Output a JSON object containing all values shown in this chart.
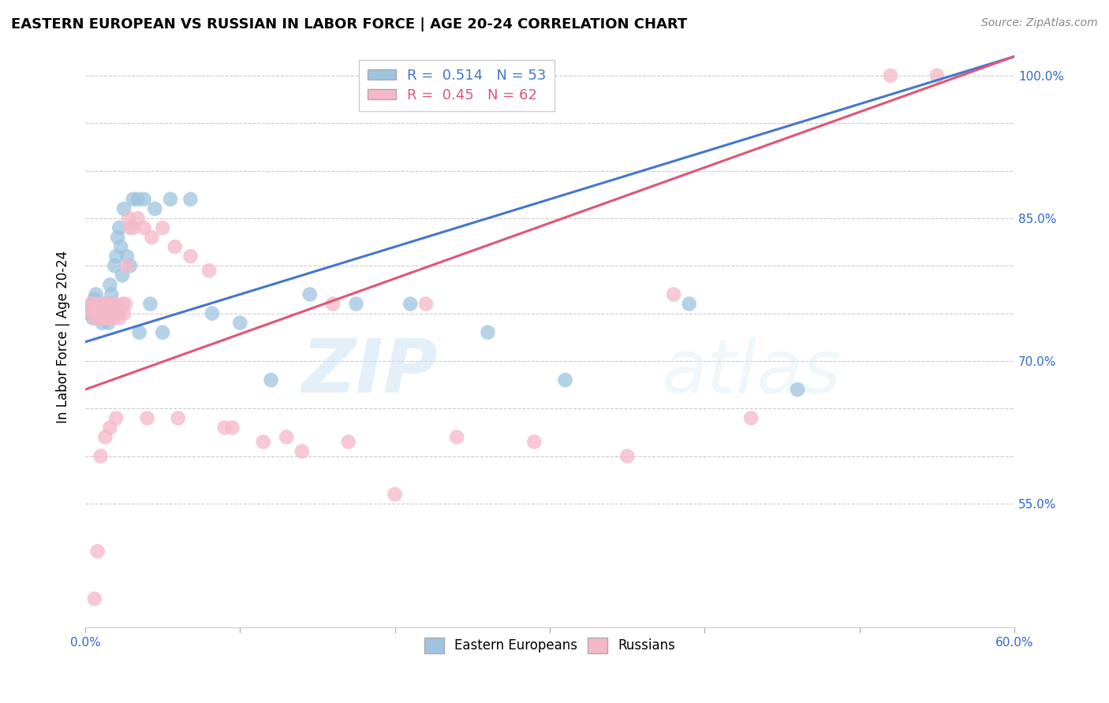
{
  "title": "EASTERN EUROPEAN VS RUSSIAN IN LABOR FORCE | AGE 20-24 CORRELATION CHART",
  "source": "Source: ZipAtlas.com",
  "ylabel": "In Labor Force | Age 20-24",
  "xlim": [
    0.0,
    0.6
  ],
  "ylim": [
    0.42,
    1.03
  ],
  "blue_R": 0.514,
  "blue_N": 53,
  "pink_R": 0.45,
  "pink_N": 62,
  "blue_color": "#9ec4e0",
  "pink_color": "#f5b8c8",
  "blue_line_color": "#4477cc",
  "pink_line_color": "#e05575",
  "blue_points_x": [
    0.003,
    0.004,
    0.005,
    0.005,
    0.006,
    0.006,
    0.007,
    0.007,
    0.008,
    0.009,
    0.01,
    0.01,
    0.011,
    0.011,
    0.012,
    0.012,
    0.013,
    0.014,
    0.014,
    0.015,
    0.015,
    0.016,
    0.016,
    0.017,
    0.018,
    0.019,
    0.02,
    0.021,
    0.022,
    0.023,
    0.024,
    0.025,
    0.027,
    0.029,
    0.031,
    0.034,
    0.038,
    0.045,
    0.055,
    0.068,
    0.082,
    0.1,
    0.12,
    0.145,
    0.175,
    0.21,
    0.26,
    0.31,
    0.39,
    0.46,
    0.035,
    0.042,
    0.05
  ],
  "blue_points_y": [
    0.75,
    0.755,
    0.745,
    0.76,
    0.75,
    0.765,
    0.755,
    0.77,
    0.76,
    0.75,
    0.745,
    0.76,
    0.755,
    0.74,
    0.75,
    0.76,
    0.755,
    0.76,
    0.75,
    0.74,
    0.76,
    0.75,
    0.78,
    0.77,
    0.76,
    0.8,
    0.81,
    0.83,
    0.84,
    0.82,
    0.79,
    0.86,
    0.81,
    0.8,
    0.87,
    0.87,
    0.87,
    0.86,
    0.87,
    0.87,
    0.75,
    0.74,
    0.68,
    0.77,
    0.76,
    0.76,
    0.73,
    0.68,
    0.76,
    0.67,
    0.73,
    0.76,
    0.73
  ],
  "pink_points_x": [
    0.003,
    0.004,
    0.005,
    0.006,
    0.007,
    0.008,
    0.009,
    0.01,
    0.011,
    0.011,
    0.012,
    0.012,
    0.013,
    0.014,
    0.015,
    0.015,
    0.016,
    0.017,
    0.018,
    0.019,
    0.02,
    0.021,
    0.022,
    0.023,
    0.024,
    0.025,
    0.026,
    0.027,
    0.028,
    0.029,
    0.031,
    0.034,
    0.038,
    0.043,
    0.05,
    0.058,
    0.068,
    0.08,
    0.095,
    0.115,
    0.14,
    0.17,
    0.2,
    0.24,
    0.29,
    0.35,
    0.43,
    0.52,
    0.006,
    0.008,
    0.01,
    0.013,
    0.016,
    0.02,
    0.04,
    0.06,
    0.09,
    0.13,
    0.16,
    0.22,
    0.38,
    0.55
  ],
  "pink_points_y": [
    0.755,
    0.76,
    0.75,
    0.745,
    0.76,
    0.755,
    0.75,
    0.745,
    0.75,
    0.76,
    0.745,
    0.755,
    0.76,
    0.75,
    0.745,
    0.76,
    0.755,
    0.75,
    0.745,
    0.76,
    0.755,
    0.75,
    0.745,
    0.755,
    0.76,
    0.75,
    0.76,
    0.8,
    0.85,
    0.84,
    0.84,
    0.85,
    0.84,
    0.83,
    0.84,
    0.82,
    0.81,
    0.795,
    0.63,
    0.615,
    0.605,
    0.615,
    0.56,
    0.62,
    0.615,
    0.6,
    0.64,
    1.0,
    0.45,
    0.5,
    0.6,
    0.62,
    0.63,
    0.64,
    0.64,
    0.64,
    0.63,
    0.62,
    0.76,
    0.76,
    0.77,
    1.0
  ]
}
